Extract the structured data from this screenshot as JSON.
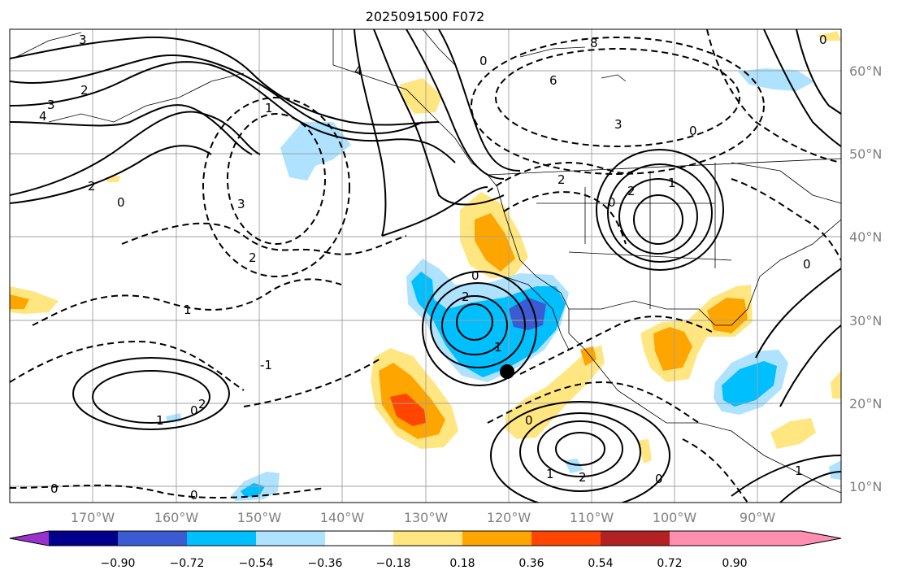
{
  "figure": {
    "title": "2025091500 F072",
    "marker": "black-dot-storm-center"
  },
  "map": {
    "lon_range": [
      -180,
      -80
    ],
    "lat_range": [
      8,
      65
    ],
    "lat_labels": [
      "60°N",
      "50°N",
      "40°N",
      "30°N",
      "20°N",
      "10°N"
    ],
    "lon_labels": [
      "170°W",
      "160°W",
      "150°W",
      "140°W",
      "130°W",
      "120°W",
      "110°W",
      "100°W",
      "90°W"
    ],
    "contour_labels": [
      "3",
      "2",
      "3",
      "4",
      "4",
      "0",
      "8",
      "1",
      "6",
      "3",
      "0",
      "2",
      "0",
      "2",
      "3",
      "2",
      "2",
      "0",
      "1",
      "1",
      "-1",
      "0",
      "2",
      "1",
      "0",
      "2",
      "1",
      "0",
      "0",
      "0",
      "0",
      "1",
      "2",
      "1",
      "0",
      "0"
    ]
  },
  "colorbar": {
    "ticks": [
      "−0.90",
      "−0.72",
      "−0.54",
      "−0.36",
      "−0.18",
      "0.18",
      "0.36",
      "0.54",
      "0.72",
      "0.90"
    ],
    "colors": {
      "under": "#9932cc",
      "bins": [
        "#00008b",
        "#3a5bd1",
        "#00bfff",
        "#aee2ff",
        "#ffffff",
        "#ffe680",
        "#ffa500",
        "#ff4500",
        "#b22222",
        "#ff8fb1"
      ]
    }
  },
  "colors": {
    "deep_neg": "#3a5bd1",
    "mid_neg": "#00bfff",
    "light_neg": "#aee2ff",
    "light_pos": "#ffe680",
    "mid_pos": "#ffa500",
    "strong_pos": "#ff4500"
  }
}
